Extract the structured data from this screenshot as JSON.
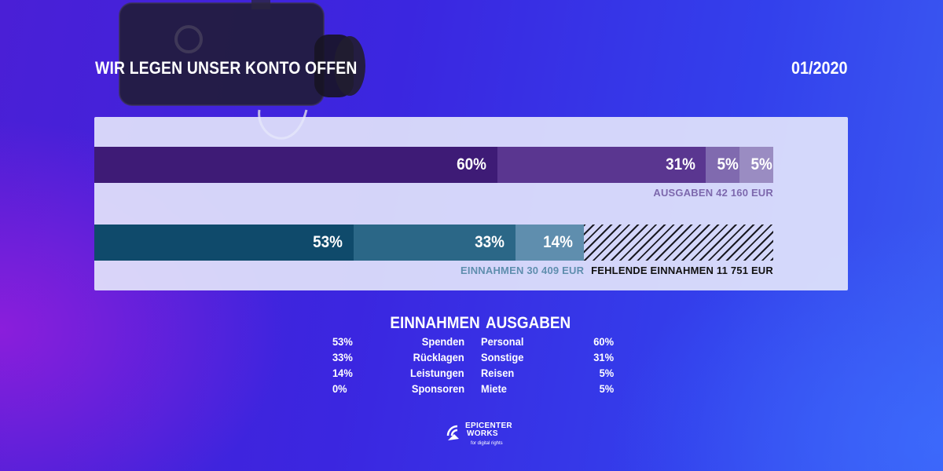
{
  "header": {
    "title": "WIR LEGEN UNSER KONTO OFFEN",
    "date": "01/2020"
  },
  "chart_data": [
    {
      "type": "bar",
      "orientation": "horizontal-stacked",
      "series": [
        {
          "values": [
            60,
            31,
            5,
            5
          ],
          "labels": [
            "60%",
            "31%",
            "5%",
            "5%"
          ]
        }
      ],
      "total_label": "AUSGABEN 42 160 EUR",
      "total": 42160,
      "colors": [
        "#3e1b76",
        "#5a3690",
        "#806aaf",
        "#9a8cc2"
      ]
    },
    {
      "type": "bar",
      "orientation": "horizontal-stacked",
      "series": [
        {
          "values": [
            53,
            33,
            14
          ],
          "labels": [
            "53%",
            "33%",
            "14%"
          ]
        }
      ],
      "total_label": "EINNAHMEN 30 409 EUR",
      "total": 30409,
      "missing_label": "FEHLENDE EINNAHMEN 11 751 EUR",
      "missing": 11751,
      "colors": [
        "#0f4a6b",
        "#2b6787",
        "#5f8eae"
      ]
    }
  ],
  "legend": {
    "einnahmen_head": "EINNAHMEN",
    "ausgaben_head": "AUSGABEN",
    "einnahmen": [
      {
        "pct": "53%",
        "label": "Spenden"
      },
      {
        "pct": "33%",
        "label": "Rücklagen"
      },
      {
        "pct": "14%",
        "label": "Leistungen"
      },
      {
        "pct": "0%",
        "label": "Sponsoren"
      }
    ],
    "ausgaben": [
      {
        "label": "Personal",
        "pct": "60%"
      },
      {
        "label": "Sonstige",
        "pct": "31%"
      },
      {
        "label": "Reisen",
        "pct": "5%"
      },
      {
        "label": "Miete",
        "pct": "5%"
      }
    ]
  },
  "logo": {
    "line1": "EPICENTER",
    "line2": "WORKS",
    "tagline": "for digital rights"
  },
  "colors": {
    "caption_ausgaben": "#7d68ad",
    "caption_einnahmen": "#5f8eae",
    "caption_missing": "#111111"
  }
}
